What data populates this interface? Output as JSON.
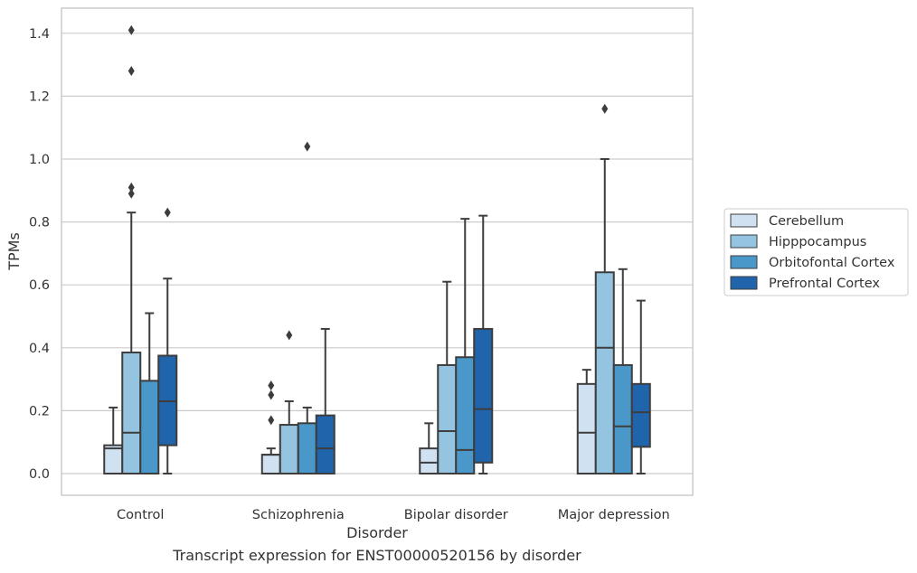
{
  "caption": "Transcript expression for ENST00000520156 by disorder",
  "chart_data": {
    "type": "boxplot",
    "xlabel": "Disorder",
    "ylabel": "TPMs",
    "ylim": [
      -0.07,
      1.48
    ],
    "yticks": [
      "0.0",
      "0.2",
      "0.4",
      "0.6",
      "0.8",
      "1.0",
      "1.2",
      "1.4"
    ],
    "grid": "horizontal",
    "legend_position": "right",
    "categories": [
      "Control",
      "Schizophrenia",
      "Bipolar disorder",
      "Major depression"
    ],
    "series": [
      {
        "name": "Cerebellum",
        "color": "#d0e1f2",
        "boxes": [
          {
            "whislo": 0.0,
            "q1": 0.0,
            "med": 0.08,
            "q3": 0.09,
            "whishi": 0.21,
            "fliers": []
          },
          {
            "whislo": 0.0,
            "q1": 0.0,
            "med": 0.06,
            "q3": 0.06,
            "whishi": 0.08,
            "fliers": [
              0.17,
              0.25,
              0.28
            ]
          },
          {
            "whislo": 0.0,
            "q1": 0.0,
            "med": 0.035,
            "q3": 0.08,
            "whishi": 0.16,
            "fliers": []
          },
          {
            "whislo": 0.0,
            "q1": 0.0,
            "med": 0.13,
            "q3": 0.285,
            "whishi": 0.33,
            "fliers": []
          }
        ]
      },
      {
        "name": "Hipppocampus",
        "color": "#94c4df",
        "boxes": [
          {
            "whislo": 0.0,
            "q1": 0.0,
            "med": 0.13,
            "q3": 0.385,
            "whishi": 0.83,
            "fliers": [
              1.41,
              1.28,
              0.91,
              0.89
            ]
          },
          {
            "whislo": 0.0,
            "q1": 0.0,
            "med": 0.0,
            "q3": 0.155,
            "whishi": 0.23,
            "fliers": [
              0.44
            ]
          },
          {
            "whislo": 0.0,
            "q1": 0.0,
            "med": 0.135,
            "q3": 0.345,
            "whishi": 0.61,
            "fliers": []
          },
          {
            "whislo": 0.0,
            "q1": 0.0,
            "med": 0.4,
            "q3": 0.64,
            "whishi": 1.0,
            "fliers": [
              1.16
            ]
          }
        ]
      },
      {
        "name": "Orbitofontal Cortex",
        "color": "#4a98c9",
        "boxes": [
          {
            "whislo": 0.0,
            "q1": 0.0,
            "med": 0.0,
            "q3": 0.295,
            "whishi": 0.51,
            "fliers": []
          },
          {
            "whislo": 0.0,
            "q1": 0.0,
            "med": 0.0,
            "q3": 0.16,
            "whishi": 0.21,
            "fliers": [
              1.04
            ]
          },
          {
            "whislo": 0.0,
            "q1": 0.0,
            "med": 0.075,
            "q3": 0.37,
            "whishi": 0.81,
            "fliers": []
          },
          {
            "whislo": 0.0,
            "q1": 0.0,
            "med": 0.15,
            "q3": 0.345,
            "whishi": 0.65,
            "fliers": []
          }
        ]
      },
      {
        "name": "Prefrontal Cortex",
        "color": "#2064ab",
        "boxes": [
          {
            "whislo": 0.0,
            "q1": 0.09,
            "med": 0.23,
            "q3": 0.375,
            "whishi": 0.62,
            "fliers": [
              0.83
            ]
          },
          {
            "whislo": 0.0,
            "q1": 0.0,
            "med": 0.08,
            "q3": 0.185,
            "whishi": 0.46,
            "fliers": []
          },
          {
            "whislo": 0.0,
            "q1": 0.035,
            "med": 0.205,
            "q3": 0.46,
            "whishi": 0.82,
            "fliers": []
          },
          {
            "whislo": 0.0,
            "q1": 0.085,
            "med": 0.195,
            "q3": 0.285,
            "whishi": 0.55,
            "fliers": []
          }
        ]
      }
    ]
  }
}
